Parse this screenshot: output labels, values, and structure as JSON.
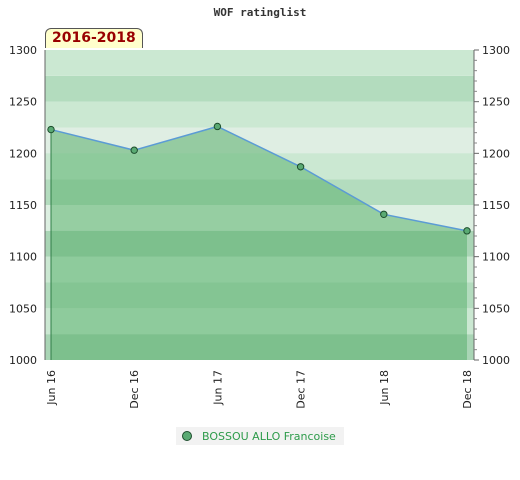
{
  "header": {
    "title": "WOF ratinglist",
    "period_badge": "2016-2018"
  },
  "legend": {
    "label": "BOSSOU ALLO Francoise",
    "marker_color": "#5aaa73"
  },
  "colors": {
    "line": "#5b9bd5",
    "area": "#5cb270",
    "point": "#5aaa73",
    "point_border": "#1c4d2c"
  },
  "chart_data": {
    "type": "area",
    "title": "WOF ratinglist",
    "categories": [
      "Jun 16",
      "Dec 16",
      "Jun 17",
      "Dec 17",
      "Jun 18",
      "Dec 18"
    ],
    "series": [
      {
        "name": "BOSSOU ALLO Francoise",
        "values": [
          1223,
          1203,
          1226,
          1187,
          1141,
          1125
        ]
      }
    ],
    "ylim": [
      1000,
      1300
    ],
    "yticks": [
      1000,
      1050,
      1100,
      1150,
      1200,
      1250,
      1300
    ],
    "y_axis_both_sides": true,
    "grid": "horizontal-bands",
    "legend_position": "bottom"
  }
}
